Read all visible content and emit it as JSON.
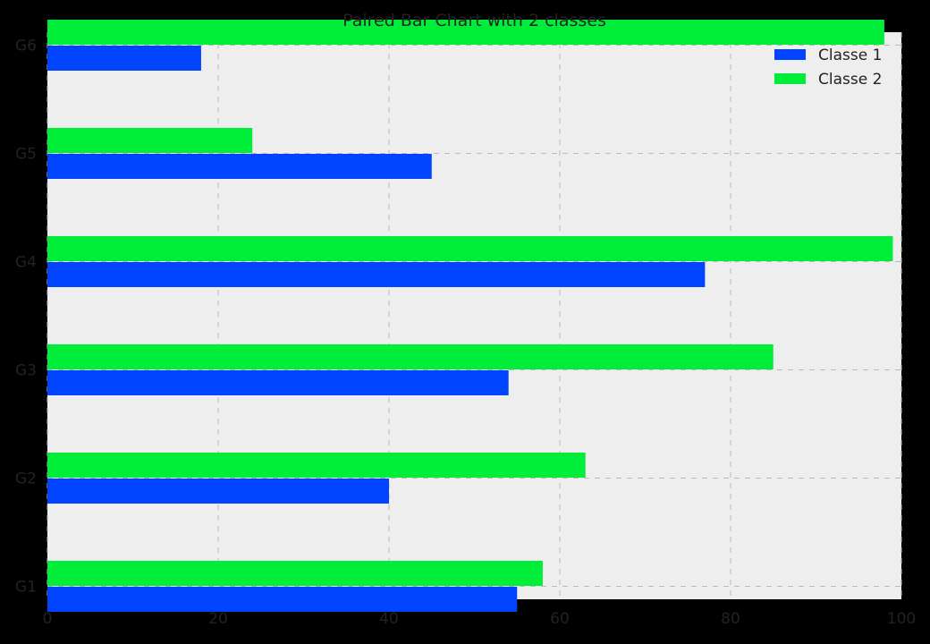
{
  "chart_data": {
    "type": "bar",
    "orientation": "horizontal",
    "title": "Paired Bar Chart with 2 classes",
    "xlabel": "",
    "ylabel": "",
    "categories": [
      "G1",
      "G2",
      "G3",
      "G4",
      "G5",
      "G6"
    ],
    "series": [
      {
        "name": "Classe 1",
        "color": "#0044ff",
        "values": [
          55,
          40,
          54,
          77,
          45,
          18
        ]
      },
      {
        "name": "Classe 2",
        "color": "#00ee3a",
        "values": [
          58,
          63,
          85,
          99,
          24,
          98
        ]
      }
    ],
    "xlim": [
      0,
      100
    ],
    "xticks": [
      "0",
      "20",
      "40",
      "60",
      "80",
      "100"
    ],
    "grid": true,
    "legend": "top-right",
    "colors": {
      "background": "#000000",
      "plot_area": "#eeeeee",
      "grid": "#bbbbbb",
      "text": "#222222"
    }
  }
}
